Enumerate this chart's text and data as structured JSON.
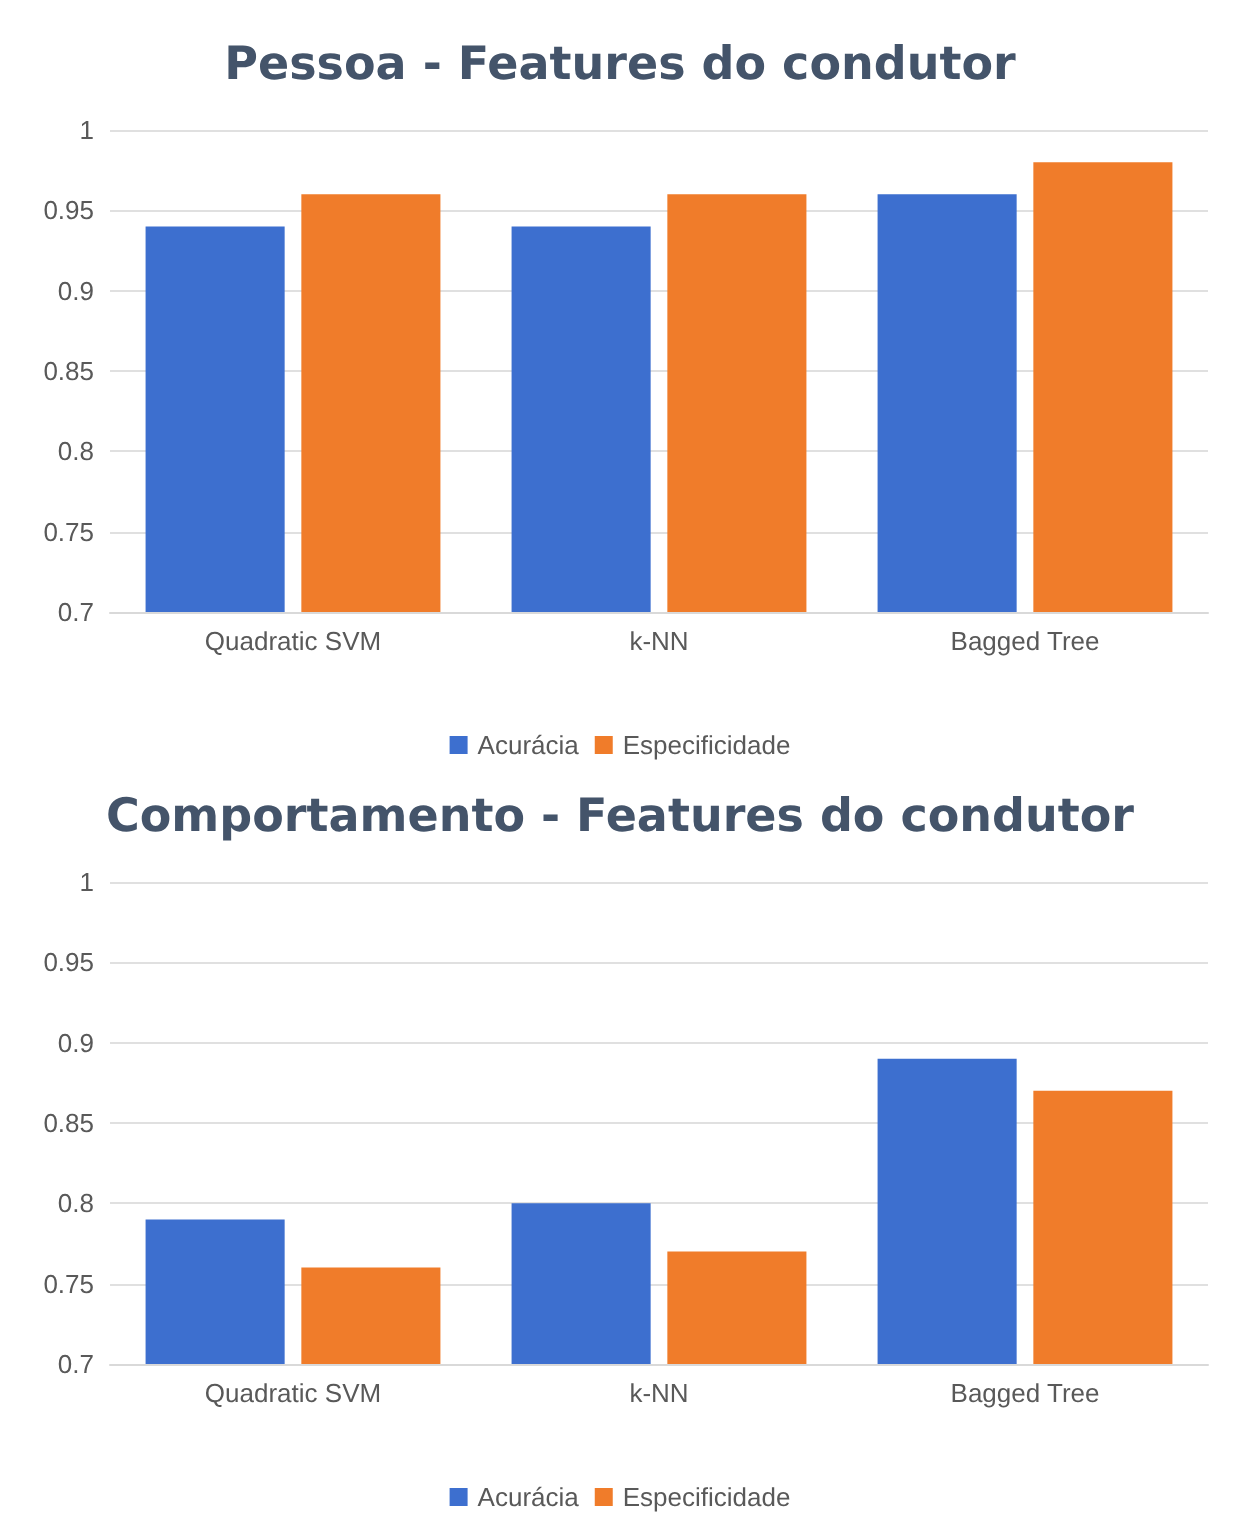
{
  "chart_data": [
    {
      "type": "bar",
      "title": "Pessoa - Features do condutor",
      "categories": [
        "Quadratic SVM",
        "k-NN",
        "Bagged Tree"
      ],
      "series": [
        {
          "name": "Acurácia",
          "color": "#3d6fcf",
          "values": [
            0.94,
            0.94,
            0.96
          ]
        },
        {
          "name": "Especificidade",
          "color": "#f07c2a",
          "values": [
            0.96,
            0.96,
            0.98
          ]
        }
      ],
      "ylim": [
        0.7,
        1
      ],
      "yticks": [
        0.7,
        0.75,
        0.8,
        0.85,
        0.9,
        0.95,
        1
      ],
      "grid": "y",
      "legend": "bottom"
    },
    {
      "type": "bar",
      "title": "Comportamento - Features do condutor",
      "categories": [
        "Quadratic SVM",
        "k-NN",
        "Bagged Tree"
      ],
      "series": [
        {
          "name": "Acurácia",
          "color": "#3d6fcf",
          "values": [
            0.79,
            0.8,
            0.89
          ]
        },
        {
          "name": "Especificidade",
          "color": "#f07c2a",
          "values": [
            0.76,
            0.77,
            0.87
          ]
        }
      ],
      "ylim": [
        0.7,
        1
      ],
      "yticks": [
        0.7,
        0.75,
        0.8,
        0.85,
        0.9,
        0.95,
        1
      ],
      "grid": "y",
      "legend": "bottom"
    }
  ]
}
